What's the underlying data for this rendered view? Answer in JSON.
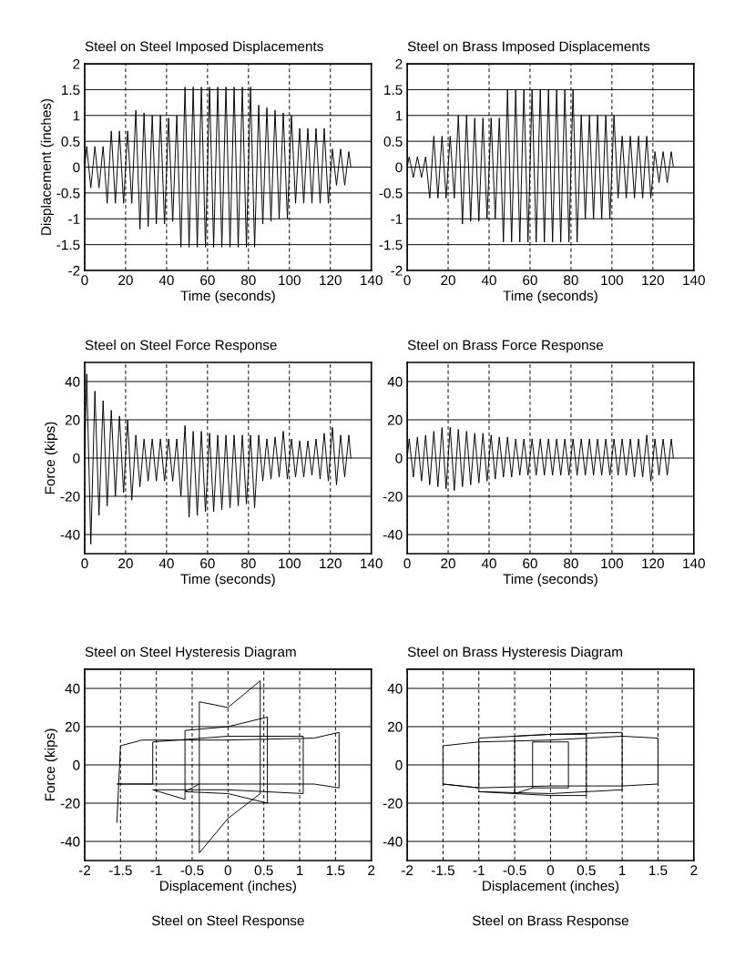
{
  "chart_data": [
    {
      "type": "line",
      "title": "Steel on Steel Imposed Displacements",
      "xlabel": "Time (seconds)",
      "ylabel": "Displacement (inches)",
      "xlim": [
        0,
        140
      ],
      "xticks": [
        0,
        20,
        40,
        60,
        80,
        100,
        120,
        140
      ],
      "ylim": [
        -2,
        2
      ],
      "yticks": [
        -2,
        -1.5,
        -1,
        -0.5,
        0,
        0.5,
        1,
        1.5,
        2
      ],
      "grid": true,
      "line_style": "solid",
      "marker": "none",
      "series": [
        {
          "color": "#000000",
          "x": [
            0,
            1,
            3,
            5,
            7,
            9,
            11,
            13,
            15,
            17,
            19,
            21,
            23,
            25,
            27,
            29,
            31,
            33,
            35,
            37,
            39,
            41,
            43,
            45,
            47,
            49,
            51,
            53,
            55,
            57,
            59,
            61,
            63,
            65,
            67,
            69,
            71,
            73,
            75,
            77,
            79,
            81,
            83,
            85,
            87,
            89,
            91,
            93,
            95,
            97,
            99,
            101,
            103,
            105,
            107,
            109,
            111,
            113,
            115,
            117,
            119,
            121,
            123,
            125,
            127,
            129,
            130
          ],
          "values": [
            0,
            0.4,
            -0.4,
            0.4,
            -0.4,
            0.4,
            -0.7,
            0.7,
            -0.7,
            0.7,
            -0.7,
            0.7,
            -0.7,
            1.1,
            -1.2,
            1.05,
            -1.15,
            1.0,
            -1.1,
            1.0,
            -1.1,
            0.95,
            -1.05,
            1.0,
            -1.55,
            1.55,
            -1.55,
            1.55,
            -1.55,
            1.55,
            -1.55,
            1.55,
            -1.55,
            1.55,
            -1.55,
            1.55,
            -1.55,
            1.55,
            -1.55,
            1.55,
            -1.55,
            1.55,
            -1.55,
            1.2,
            -1.1,
            1.15,
            -1.05,
            1.1,
            -1.0,
            1.05,
            -1.0,
            1.0,
            -0.7,
            0.75,
            -0.7,
            0.75,
            -0.7,
            0.75,
            -0.7,
            0.75,
            -0.7,
            0.35,
            -0.35,
            0.35,
            -0.35,
            0.3,
            0
          ]
        }
      ]
    },
    {
      "type": "line",
      "title": "Steel on Brass Imposed Displacements",
      "xlabel": "Time (seconds)",
      "xlim": [
        0,
        140
      ],
      "xticks": [
        0,
        20,
        40,
        60,
        80,
        100,
        120,
        140
      ],
      "ylim": [
        -2,
        2
      ],
      "yticks": [
        -2,
        -1.5,
        -1,
        -0.5,
        0,
        0.5,
        1,
        1.5,
        2
      ],
      "grid": true,
      "line_style": "solid",
      "marker": "none",
      "series": [
        {
          "color": "#000000",
          "x": [
            0,
            1,
            3,
            5,
            7,
            9,
            11,
            13,
            15,
            17,
            19,
            21,
            23,
            25,
            27,
            29,
            31,
            33,
            35,
            37,
            39,
            41,
            43,
            45,
            47,
            49,
            51,
            53,
            55,
            57,
            59,
            61,
            63,
            65,
            67,
            69,
            71,
            73,
            75,
            77,
            79,
            81,
            83,
            85,
            87,
            89,
            91,
            93,
            95,
            97,
            99,
            101,
            103,
            105,
            107,
            109,
            111,
            113,
            115,
            117,
            119,
            121,
            123,
            125,
            127,
            129,
            130
          ],
          "values": [
            0,
            0.2,
            -0.2,
            0.2,
            -0.2,
            0.2,
            -0.6,
            0.6,
            -0.6,
            0.6,
            -0.6,
            0.6,
            -0.6,
            1.0,
            -1.1,
            1.0,
            -1.05,
            0.95,
            -1.05,
            0.95,
            -1.0,
            0.95,
            -1.0,
            0.95,
            -1.45,
            1.5,
            -1.45,
            1.5,
            -1.45,
            1.5,
            -1.45,
            1.5,
            -1.45,
            1.5,
            -1.45,
            1.5,
            -1.45,
            1.5,
            -1.45,
            1.5,
            -1.45,
            1.5,
            -1.45,
            1.0,
            -1.0,
            1.0,
            -1.0,
            1.0,
            -1.0,
            1.0,
            -1.0,
            1.0,
            -0.6,
            0.6,
            -0.6,
            0.6,
            -0.6,
            0.6,
            -0.6,
            0.6,
            -0.6,
            0.3,
            -0.3,
            0.3,
            -0.3,
            0.3,
            0
          ]
        }
      ]
    },
    {
      "type": "line",
      "title": "Steel on Steel Force Response",
      "xlabel": "Time (seconds)",
      "ylabel": "Force (kips)",
      "xlim": [
        0,
        140
      ],
      "xticks": [
        0,
        20,
        40,
        60,
        80,
        100,
        120,
        140
      ],
      "ylim": [
        -50,
        50
      ],
      "yticks": [
        -40,
        -20,
        0,
        20,
        40
      ],
      "grid": true,
      "line_style": "solid",
      "marker": "none",
      "series": [
        {
          "color": "#000000",
          "x": [
            0,
            1,
            3,
            5,
            7,
            9,
            11,
            13,
            15,
            17,
            19,
            21,
            23,
            25,
            27,
            29,
            31,
            33,
            35,
            37,
            39,
            41,
            43,
            45,
            47,
            49,
            51,
            53,
            55,
            57,
            59,
            61,
            63,
            65,
            67,
            69,
            71,
            73,
            75,
            77,
            79,
            81,
            83,
            85,
            87,
            89,
            91,
            93,
            95,
            97,
            99,
            101,
            103,
            105,
            107,
            109,
            111,
            113,
            115,
            117,
            119,
            121,
            123,
            125,
            127,
            129,
            130
          ],
          "values": [
            0,
            44,
            -45,
            35,
            -30,
            30,
            -25,
            25,
            -20,
            22,
            -18,
            20,
            -22,
            12,
            -15,
            10,
            -12,
            10,
            -12,
            10,
            -12,
            10,
            -12,
            10,
            -20,
            17,
            -31,
            14,
            -30,
            14,
            -28,
            13,
            -28,
            12,
            -27,
            12,
            -26,
            12,
            -25,
            12,
            -24,
            12,
            -26,
            12,
            -12,
            10,
            -11,
            11,
            -10,
            14,
            -11,
            10,
            -10,
            9,
            -10,
            9,
            -9,
            10,
            -11,
            13,
            -12,
            16,
            -14,
            12,
            -10,
            12,
            0
          ]
        }
      ]
    },
    {
      "type": "line",
      "title": "Steel on Brass Force Response",
      "xlabel": "Time (seconds)",
      "xlim": [
        0,
        140
      ],
      "xticks": [
        0,
        20,
        40,
        60,
        80,
        100,
        120,
        140
      ],
      "ylim": [
        -50,
        50
      ],
      "yticks": [
        -40,
        -20,
        0,
        20,
        40
      ],
      "grid": true,
      "line_style": "solid",
      "marker": "none",
      "series": [
        {
          "color": "#000000",
          "x": [
            0,
            1,
            3,
            5,
            7,
            9,
            11,
            13,
            15,
            17,
            19,
            21,
            23,
            25,
            27,
            29,
            31,
            33,
            35,
            37,
            39,
            41,
            43,
            45,
            47,
            49,
            51,
            53,
            55,
            57,
            59,
            61,
            63,
            65,
            67,
            69,
            71,
            73,
            75,
            77,
            79,
            81,
            83,
            85,
            87,
            89,
            91,
            93,
            95,
            97,
            99,
            101,
            103,
            105,
            107,
            109,
            111,
            113,
            115,
            117,
            119,
            121,
            123,
            125,
            127,
            129,
            130
          ],
          "values": [
            0,
            10,
            -10,
            11,
            -12,
            12,
            -14,
            14,
            -15,
            16,
            -16,
            16,
            -17,
            15,
            -15,
            14,
            -14,
            13,
            -13,
            13,
            -12,
            12,
            -11,
            11,
            -10,
            11,
            -10,
            10,
            -9,
            10,
            -9,
            10,
            -9,
            10,
            -9,
            10,
            -9,
            10,
            -9,
            10,
            -9,
            10,
            -9,
            10,
            -9,
            10,
            -9,
            10,
            -9,
            10,
            -9,
            10,
            -9,
            10,
            -9,
            10,
            -10,
            10,
            -10,
            12,
            -12,
            10,
            -9,
            10,
            -9,
            10,
            0
          ]
        }
      ]
    },
    {
      "type": "line",
      "title": "Steel on Steel Hysteresis Diagram",
      "xlabel": "Displacement (inches)",
      "ylabel": "Force (kips)",
      "xlim": [
        -2,
        2
      ],
      "xticks": [
        -2,
        -1.5,
        -1,
        -0.5,
        0,
        0.5,
        1,
        1.5,
        2
      ],
      "ylim": [
        -50,
        50
      ],
      "yticks": [
        -40,
        -20,
        0,
        20,
        40
      ],
      "grid": true,
      "line_style": "solid",
      "marker": "none",
      "annotations": [
        "Steel on Steel Response"
      ],
      "series": [
        {
          "color": "#000000",
          "x": [
            -1.55,
            -1.5,
            -1.2,
            0,
            1.2,
            1.55,
            1.55,
            1.2,
            0,
            -1.2,
            -1.55,
            -1.05,
            -1.05,
            0,
            1.05,
            1.05,
            0,
            -1.05,
            -0.6,
            -0.6,
            0,
            0.55,
            0.55,
            0,
            -0.6,
            -0.4,
            -0.4,
            0,
            0.45,
            0.45,
            0,
            -0.4,
            -0.4
          ],
          "values": [
            -30,
            10,
            13,
            13,
            14,
            17,
            -12,
            -10,
            -10,
            -10,
            -10,
            -10,
            12,
            15,
            15,
            -15,
            -13,
            -13,
            -18,
            18,
            20,
            25,
            -20,
            -15,
            -14,
            -10,
            33,
            30,
            44,
            -15,
            -28,
            -46,
            -10
          ]
        }
      ]
    },
    {
      "type": "line",
      "title": "Steel on Brass Hysteresis Diagram",
      "xlabel": "Displacement (inches)",
      "xlim": [
        -2,
        2
      ],
      "xticks": [
        -2,
        -1.5,
        -1,
        -0.5,
        0,
        0.5,
        1,
        1.5,
        2
      ],
      "ylim": [
        -50,
        50
      ],
      "yticks": [
        -40,
        -20,
        0,
        20,
        40
      ],
      "grid": true,
      "line_style": "solid",
      "marker": "none",
      "annotations": [
        "Steel on Brass Response"
      ],
      "series": [
        {
          "color": "#000000",
          "x": [
            -1.5,
            -1.5,
            -1.0,
            0,
            1.0,
            1.5,
            1.5,
            1.0,
            0,
            -1.0,
            -1.5,
            -1.0,
            -1.0,
            0,
            1.0,
            1.0,
            0,
            -1.0,
            -0.5,
            -0.5,
            0,
            0.5,
            0.5,
            0,
            -0.5,
            -0.25,
            -0.25,
            0.25,
            0.25,
            -0.25
          ],
          "values": [
            -10,
            10,
            12,
            13,
            15,
            14,
            -10,
            -11,
            -11,
            -12,
            -10,
            -12,
            14,
            16,
            17,
            -13,
            -15,
            -14,
            -15,
            15,
            16,
            16,
            -16,
            -16,
            -15,
            -12,
            12,
            12,
            -12,
            -12
          ]
        }
      ]
    }
  ]
}
